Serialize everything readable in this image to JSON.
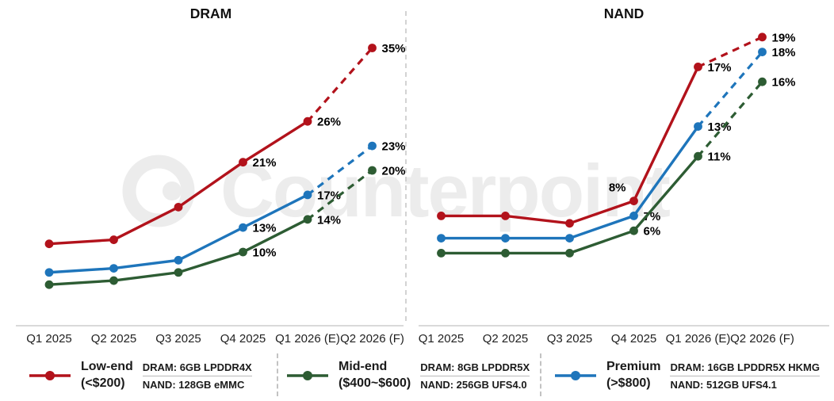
{
  "watermark": {
    "text": "Counterpoint"
  },
  "colors": {
    "low_end": "#b2121b",
    "mid_end": "#2d5c33",
    "premium": "#1e75bb",
    "axis_line": "#d9d9d9",
    "panel_divider": "#c8c8c8",
    "watermark": "#ececec",
    "label_text": "#000000"
  },
  "chart_data": [
    {
      "type": "line",
      "title": "DRAM",
      "categories": [
        "Q1 2025",
        "Q2 2025",
        "Q3 2025",
        "Q4 2025",
        "Q1 2026 (E)",
        "Q2 2026 (F)"
      ],
      "ylabel": "",
      "ylim": [
        0,
        38
      ],
      "grid": false,
      "legend_position": "bottom",
      "note": "values for Q1-Q3 2025 are unlabeled in the figure and estimated from line positions; final segment (Q1 2026 to Q2 2026) is dashed forecast",
      "series": [
        {
          "name": "Low-end (<$200)",
          "color": "#b2121b",
          "values": [
            11,
            11.5,
            15.5,
            21,
            26,
            35
          ],
          "labels": [
            "",
            "",
            "",
            "21%",
            "26%",
            "35%"
          ],
          "dashed_from_index": 4
        },
        {
          "name": "Mid-end ($400~$600)",
          "color": "#2d5c33",
          "values": [
            6,
            6.5,
            7.5,
            10,
            14,
            20
          ],
          "labels": [
            "",
            "",
            "",
            "10%",
            "14%",
            "20%"
          ],
          "dashed_from_index": 4
        },
        {
          "name": "Premium (>$800)",
          "color": "#1e75bb",
          "values": [
            7.5,
            8,
            9,
            13,
            17,
            23
          ],
          "labels": [
            "",
            "",
            "",
            "13%",
            "17%",
            "23%"
          ],
          "dashed_from_index": 4
        }
      ]
    },
    {
      "type": "line",
      "title": "NAND",
      "categories": [
        "Q1 2025",
        "Q2 2025",
        "Q3 2025",
        "Q4 2025",
        "Q1 2026 (E)",
        "Q2 2026 (F)"
      ],
      "ylabel": "",
      "ylim": [
        0,
        21
      ],
      "grid": false,
      "legend_position": "bottom",
      "note": "values for Q1-Q3 2025 are unlabeled in the figure and estimated from line positions; final segment (Q1 2026 to Q2 2026) is dashed forecast",
      "series": [
        {
          "name": "Low-end (<$200)",
          "color": "#b2121b",
          "values": [
            7,
            7,
            6.5,
            8,
            17,
            19
          ],
          "labels": [
            "",
            "",
            "",
            "8%",
            "17%",
            "19%"
          ],
          "label_side": [
            "r",
            "r",
            "r",
            "al",
            "r",
            "r"
          ],
          "dashed_from_index": 4
        },
        {
          "name": "Mid-end ($400~$600)",
          "color": "#2d5c33",
          "values": [
            4.5,
            4.5,
            4.5,
            6,
            11,
            16
          ],
          "labels": [
            "",
            "",
            "",
            "6%",
            "11%",
            "16%"
          ],
          "dashed_from_index": 4
        },
        {
          "name": "Premium (>$800)",
          "color": "#1e75bb",
          "values": [
            5.5,
            5.5,
            5.5,
            7,
            13,
            18
          ],
          "labels": [
            "",
            "",
            "",
            "7%",
            "13%",
            "18%"
          ],
          "dashed_from_index": 4
        }
      ]
    }
  ],
  "legend": {
    "items": [
      {
        "name": "Low-end",
        "range": "(<$200)",
        "dram_spec": "DRAM: 6GB LPDDR4X",
        "nand_spec": "NAND: 128GB eMMC",
        "color": "#b2121b"
      },
      {
        "name": "Mid-end",
        "range": "($400~$600)",
        "dram_spec": "DRAM: 8GB LPDDR5X",
        "nand_spec": "NAND: 256GB UFS4.0",
        "color": "#2d5c33"
      },
      {
        "name": "Premium",
        "range": "(>$800)",
        "dram_spec": "DRAM: 16GB LPDDR5X HKMG",
        "nand_spec": "NAND: 512GB UFS4.1",
        "color": "#1e75bb"
      }
    ]
  }
}
